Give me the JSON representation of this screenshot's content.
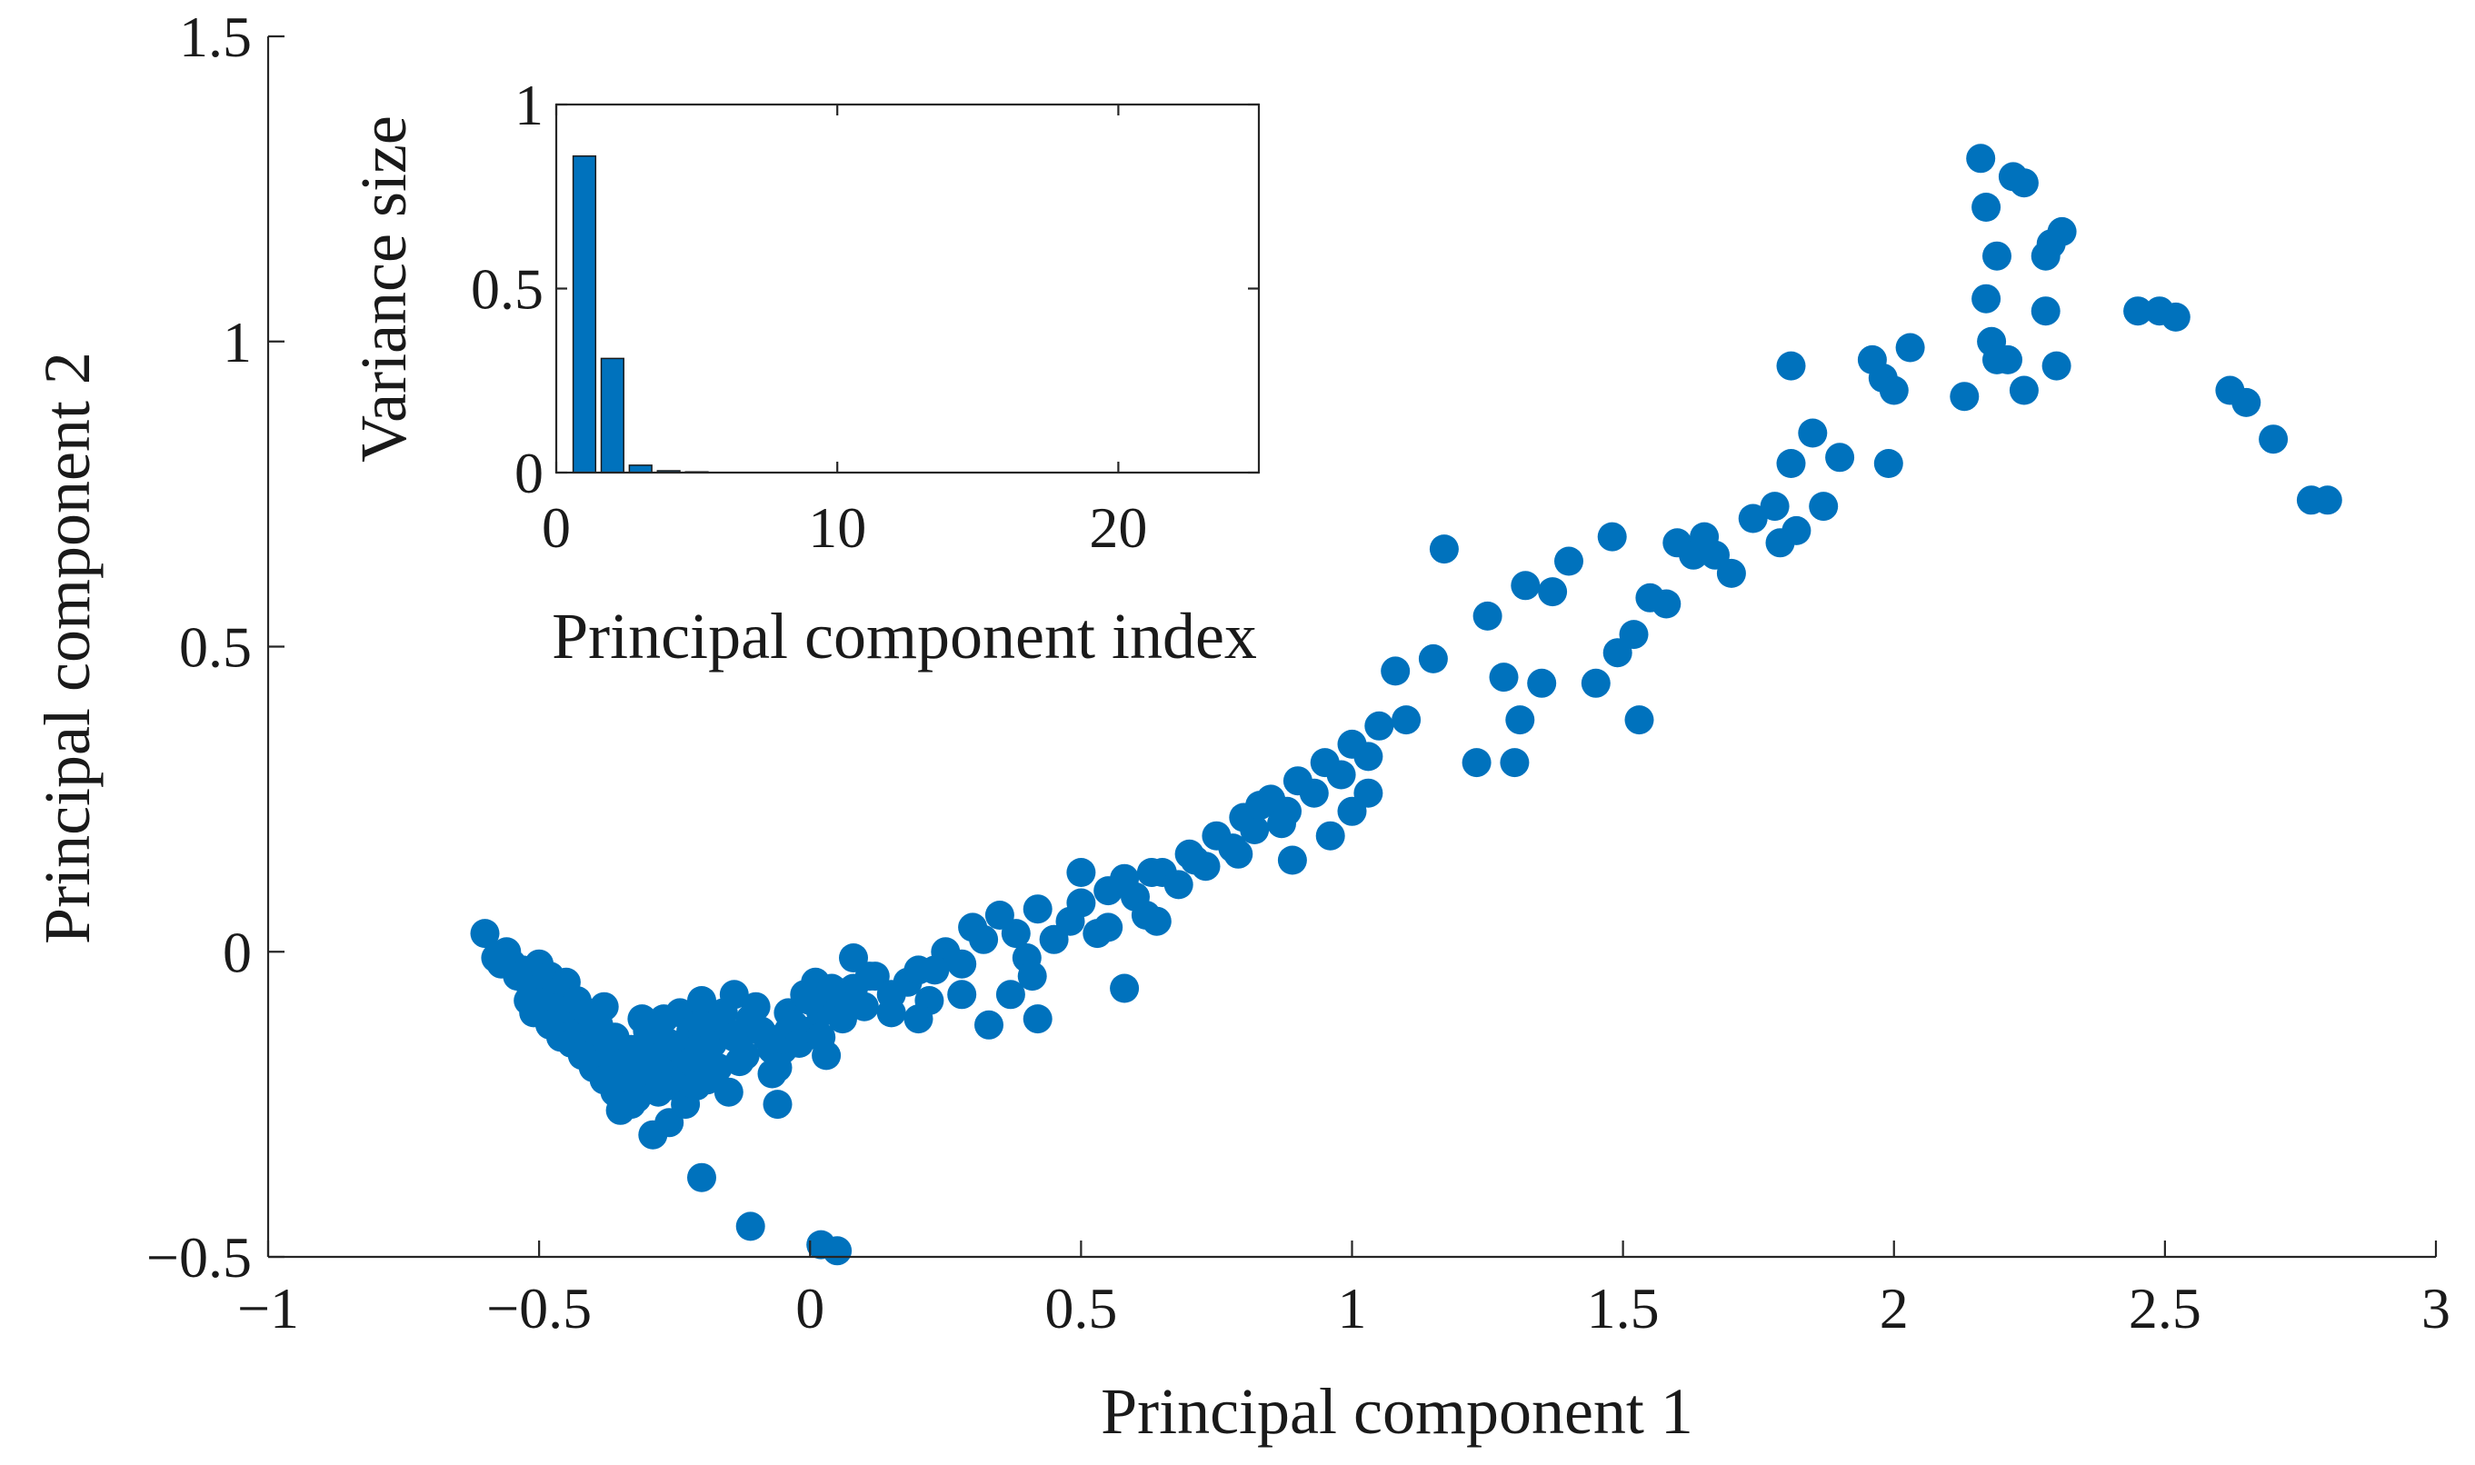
{
  "colors": {
    "marker": "#0072BD",
    "axis": "#262626",
    "background": "#ffffff"
  },
  "chart_data": [
    {
      "type": "scatter",
      "title": "",
      "xlabel": "Principal component 1",
      "ylabel": "Principal component 2",
      "xlim": [
        -1,
        3
      ],
      "ylim": [
        -0.5,
        1.5
      ],
      "xticks": [
        -1,
        -0.5,
        0,
        0.5,
        1,
        1.5,
        2,
        2.5,
        3
      ],
      "xtick_labels": [
        "−1",
        "−0.5",
        "0",
        "0.5",
        "1",
        "1.5",
        "2",
        "2.5",
        "3"
      ],
      "yticks": [
        -0.5,
        0,
        0.5,
        1,
        1.5
      ],
      "ytick_labels": [
        "−0.5",
        "0",
        "0.5",
        "1",
        "1.5"
      ],
      "grid": false,
      "series": [
        {
          "name": "observations",
          "color": "#0072BD",
          "points": [
            [
              -0.6,
              0.03
            ],
            [
              -0.58,
              -0.01
            ],
            [
              -0.56,
              0.0
            ],
            [
              -0.55,
              -0.02
            ],
            [
              -0.53,
              -0.03
            ],
            [
              -0.52,
              -0.05
            ],
            [
              -0.5,
              -0.02
            ],
            [
              -0.5,
              -0.06
            ],
            [
              -0.49,
              -0.08
            ],
            [
              -0.48,
              -0.04
            ],
            [
              -0.47,
              -0.07
            ],
            [
              -0.46,
              -0.09
            ],
            [
              -0.45,
              -0.05
            ],
            [
              -0.44,
              -0.11
            ],
            [
              -0.43,
              -0.08
            ],
            [
              -0.42,
              -0.13
            ],
            [
              -0.41,
              -0.1
            ],
            [
              -0.4,
              -0.15
            ],
            [
              -0.39,
              -0.12
            ],
            [
              -0.38,
              -0.09
            ],
            [
              -0.37,
              -0.17
            ],
            [
              -0.36,
              -0.14
            ],
            [
              -0.35,
              -0.19
            ],
            [
              -0.35,
              -0.26
            ],
            [
              -0.34,
              -0.22
            ],
            [
              -0.33,
              -0.16
            ],
            [
              -0.32,
              -0.24
            ],
            [
              -0.31,
              -0.11
            ],
            [
              -0.3,
              -0.2
            ],
            [
              -0.29,
              -0.3
            ],
            [
              -0.28,
              -0.14
            ],
            [
              -0.27,
              -0.18
            ],
            [
              -0.26,
              -0.28
            ],
            [
              -0.25,
              -0.22
            ],
            [
              -0.24,
              -0.1
            ],
            [
              -0.23,
              -0.25
            ],
            [
              -0.22,
              -0.13
            ],
            [
              -0.21,
              -0.17
            ],
            [
              -0.2,
              -0.08
            ],
            [
              -0.19,
              -0.21
            ],
            [
              -0.18,
              -0.15
            ],
            [
              -0.17,
              -0.12
            ],
            [
              -0.15,
              -0.23
            ],
            [
              -0.14,
              -0.07
            ],
            [
              -0.13,
              -0.18
            ],
            [
              -0.12,
              -0.13
            ],
            [
              -0.1,
              -0.09
            ],
            [
              -0.08,
              -0.14
            ],
            [
              -0.07,
              -0.2
            ],
            [
              -0.06,
              -0.25
            ],
            [
              -0.05,
              -0.16
            ],
            [
              -0.04,
              -0.1
            ],
            [
              -0.03,
              -0.12
            ],
            [
              -0.01,
              -0.07
            ],
            [
              0.0,
              -0.13
            ],
            [
              0.01,
              -0.05
            ],
            [
              0.02,
              -0.1
            ],
            [
              0.03,
              -0.17
            ],
            [
              0.05,
              -0.08
            ],
            [
              0.06,
              -0.11
            ],
            [
              0.08,
              -0.06
            ],
            [
              0.1,
              -0.09
            ],
            [
              0.12,
              -0.04
            ],
            [
              0.15,
              -0.07
            ],
            [
              0.18,
              -0.05
            ],
            [
              0.2,
              -0.03
            ],
            [
              0.22,
              -0.08
            ],
            [
              0.25,
              0.0
            ],
            [
              0.28,
              -0.02
            ],
            [
              0.3,
              0.04
            ],
            [
              0.32,
              0.02
            ],
            [
              0.35,
              0.06
            ],
            [
              0.38,
              0.03
            ],
            [
              0.4,
              -0.01
            ],
            [
              0.42,
              0.07
            ],
            [
              0.45,
              0.02
            ],
            [
              0.48,
              0.05
            ],
            [
              0.5,
              0.08
            ],
            [
              0.53,
              0.03
            ],
            [
              0.55,
              0.1
            ],
            [
              0.58,
              0.12
            ],
            [
              0.6,
              0.09
            ],
            [
              0.62,
              0.06
            ],
            [
              0.65,
              0.13
            ],
            [
              0.68,
              0.11
            ],
            [
              0.7,
              0.16
            ],
            [
              0.73,
              0.14
            ],
            [
              0.75,
              0.19
            ],
            [
              0.78,
              0.17
            ],
            [
              0.8,
              0.22
            ],
            [
              0.82,
              0.2
            ],
            [
              0.85,
              0.25
            ],
            [
              0.88,
              0.23
            ],
            [
              0.9,
              0.28
            ],
            [
              0.93,
              0.26
            ],
            [
              0.95,
              0.31
            ],
            [
              0.98,
              0.29
            ],
            [
              1.0,
              0.34
            ],
            [
              1.03,
              0.32
            ],
            [
              1.05,
              0.37
            ],
            [
              -0.57,
              -0.02
            ],
            [
              -0.54,
              -0.04
            ],
            [
              -0.52,
              -0.08
            ],
            [
              -0.51,
              -0.1
            ],
            [
              -0.48,
              -0.12
            ],
            [
              -0.46,
              -0.14
            ],
            [
              -0.44,
              -0.15
            ],
            [
              -0.42,
              -0.17
            ],
            [
              -0.4,
              -0.19
            ],
            [
              -0.38,
              -0.21
            ],
            [
              -0.36,
              -0.23
            ],
            [
              -0.34,
              -0.18
            ],
            [
              -0.33,
              -0.25
            ],
            [
              -0.32,
              -0.2
            ],
            [
              -0.31,
              -0.16
            ],
            [
              -0.3,
              -0.13
            ],
            [
              -0.29,
              -0.19
            ],
            [
              -0.28,
              -0.23
            ],
            [
              -0.27,
              -0.11
            ],
            [
              -0.26,
              -0.15
            ],
            [
              -0.25,
              -0.19
            ],
            [
              -0.24,
              -0.16
            ],
            [
              -0.23,
              -0.2
            ],
            [
              -0.22,
              -0.18
            ],
            [
              -0.21,
              -0.22
            ],
            [
              -0.2,
              -0.12
            ],
            [
              -0.19,
              -0.16
            ],
            [
              -0.17,
              -0.19
            ],
            [
              -0.16,
              -0.1
            ],
            [
              -0.14,
              -0.14
            ],
            [
              -0.12,
              -0.17
            ],
            [
              -0.11,
              -0.11
            ],
            [
              -0.09,
              -0.13
            ],
            [
              -0.07,
              -0.16
            ],
            [
              -0.06,
              -0.19
            ],
            [
              -0.04,
              -0.13
            ],
            [
              -0.02,
              -0.15
            ],
            [
              0.0,
              -0.08
            ],
            [
              0.02,
              -0.14
            ],
            [
              0.04,
              -0.06
            ],
            [
              -0.2,
              -0.37
            ],
            [
              -0.11,
              -0.45
            ],
            [
              0.02,
              -0.48
            ],
            [
              0.05,
              -0.49
            ],
            [
              0.08,
              -0.01
            ],
            [
              0.11,
              -0.04
            ],
            [
              0.15,
              -0.1
            ],
            [
              0.2,
              -0.11
            ],
            [
              0.23,
              -0.03
            ],
            [
              0.28,
              -0.07
            ],
            [
              0.33,
              -0.12
            ],
            [
              0.37,
              -0.07
            ],
            [
              0.41,
              -0.04
            ],
            [
              0.42,
              -0.11
            ],
            [
              0.5,
              0.13
            ],
            [
              0.55,
              0.04
            ],
            [
              0.58,
              -0.06
            ],
            [
              0.63,
              0.13
            ],
            [
              0.64,
              0.05
            ],
            [
              0.71,
              0.15
            ],
            [
              0.79,
              0.16
            ],
            [
              0.83,
              0.24
            ],
            [
              0.87,
              0.21
            ],
            [
              0.89,
              0.15
            ],
            [
              0.96,
              0.19
            ],
            [
              1.0,
              0.23
            ],
            [
              1.03,
              0.26
            ],
            [
              1.08,
              0.46
            ],
            [
              1.1,
              0.38
            ],
            [
              1.15,
              0.48
            ],
            [
              1.23,
              0.31
            ],
            [
              1.28,
              0.45
            ],
            [
              1.3,
              0.31
            ],
            [
              1.31,
              0.38
            ],
            [
              1.35,
              0.44
            ],
            [
              1.37,
              0.59
            ],
            [
              1.4,
              0.64
            ],
            [
              1.48,
              0.68
            ],
            [
              1.49,
              0.49
            ],
            [
              1.52,
              0.52
            ],
            [
              1.53,
              0.38
            ],
            [
              1.58,
              0.57
            ],
            [
              1.6,
              0.67
            ],
            [
              1.63,
              0.65
            ],
            [
              1.65,
              0.68
            ],
            [
              1.67,
              0.65
            ],
            [
              1.74,
              0.71
            ],
            [
              1.78,
              0.73
            ],
            [
              1.79,
              0.67
            ],
            [
              1.81,
              0.8
            ],
            [
              1.82,
              0.69
            ],
            [
              1.85,
              0.85
            ],
            [
              1.87,
              0.73
            ],
            [
              1.9,
              0.81
            ],
            [
              1.81,
              0.96
            ],
            [
              1.96,
              0.97
            ],
            [
              1.98,
              0.94
            ],
            [
              2.0,
              0.92
            ],
            [
              2.03,
              0.99
            ],
            [
              1.99,
              0.8
            ],
            [
              2.13,
              0.91
            ],
            [
              2.16,
              1.3
            ],
            [
              2.17,
              1.22
            ],
            [
              2.17,
              1.07
            ],
            [
              2.18,
              1.0
            ],
            [
              2.19,
              0.97
            ],
            [
              2.19,
              1.14
            ],
            [
              2.21,
              0.97
            ],
            [
              2.22,
              1.27
            ],
            [
              2.24,
              1.26
            ],
            [
              2.24,
              0.92
            ],
            [
              2.28,
              1.14
            ],
            [
              2.28,
              1.05
            ],
            [
              2.29,
              1.16
            ],
            [
              2.3,
              0.96
            ],
            [
              2.31,
              1.18
            ],
            [
              2.45,
              1.05
            ],
            [
              2.49,
              1.05
            ],
            [
              2.52,
              1.04
            ],
            [
              2.62,
              0.92
            ],
            [
              2.65,
              0.9
            ],
            [
              2.7,
              0.84
            ],
            [
              2.77,
              0.74
            ],
            [
              2.8,
              0.74
            ],
            [
              1.17,
              0.66
            ],
            [
              1.25,
              0.55
            ],
            [
              1.32,
              0.6
            ],
            [
              1.45,
              0.44
            ],
            [
              1.55,
              0.58
            ],
            [
              1.7,
              0.62
            ]
          ]
        }
      ]
    },
    {
      "type": "bar",
      "title": "",
      "xlabel": "Principal component index",
      "ylabel": "Variance size",
      "xlim": [
        0,
        25
      ],
      "ylim": [
        0,
        1
      ],
      "xticks": [
        0,
        10,
        20
      ],
      "xtick_labels": [
        "0",
        "10",
        "20"
      ],
      "yticks": [
        0,
        0.5,
        1
      ],
      "ytick_labels": [
        "0",
        "0.5",
        "1"
      ],
      "categories": [
        1,
        2,
        3,
        4,
        5,
        6,
        7,
        8,
        9,
        10,
        11,
        12,
        13,
        14,
        15,
        16,
        17,
        18,
        19,
        20,
        21,
        22,
        23,
        24
      ],
      "values": [
        0.86,
        0.31,
        0.02,
        0.005,
        0.002,
        0.001,
        0.0005,
        0.0003,
        0.0002,
        0.0001,
        0.0001,
        0.0001,
        0.0001,
        0.0001,
        0.0001,
        0.0001,
        0.0001,
        0.0001,
        0.0001,
        0.0001,
        0.0001,
        0.0001,
        0.0001,
        0.0001
      ],
      "color": "#0072BD"
    }
  ]
}
